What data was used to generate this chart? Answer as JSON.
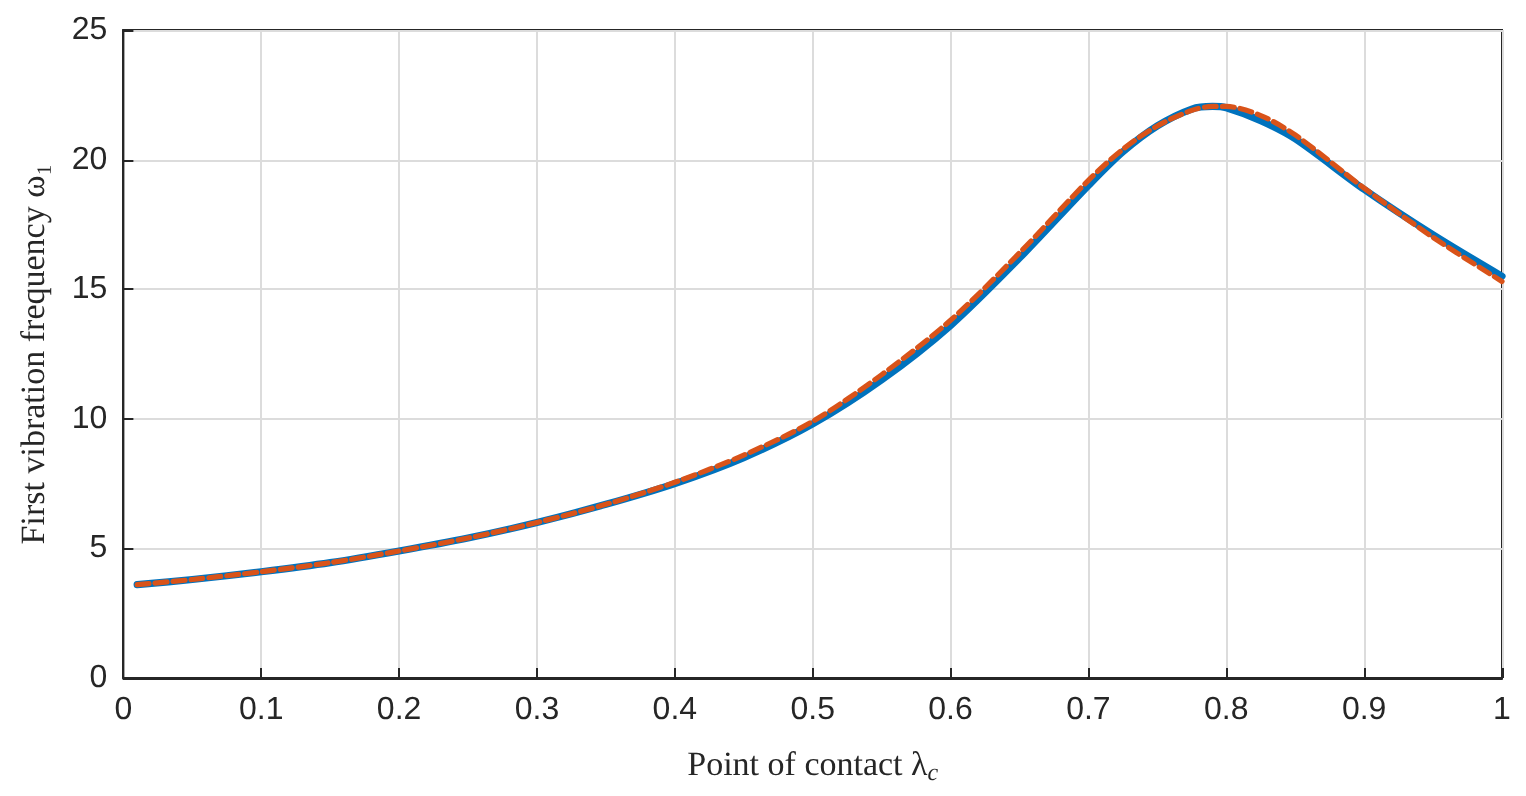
{
  "chart_data": {
    "type": "line",
    "xlabel": "Point of contact λ$_{c}$",
    "ylabel": "First vibration frequency ω₁",
    "xlim": [
      0,
      1
    ],
    "ylim": [
      0,
      25
    ],
    "xticks": [
      0,
      0.1,
      0.2,
      0.3,
      0.4,
      0.5,
      0.6,
      0.7,
      0.8,
      0.9,
      1
    ],
    "yticks": [
      0,
      5,
      10,
      15,
      20,
      25
    ],
    "grid": true,
    "marker": "none",
    "series": [
      {
        "color": "#0072bd",
        "line_style": "solid",
        "x": [
          0.01,
          0.05,
          0.1,
          0.15,
          0.2,
          0.25,
          0.3,
          0.35,
          0.4,
          0.45,
          0.5,
          0.55,
          0.6,
          0.65,
          0.7,
          0.725,
          0.75,
          0.775,
          0.79,
          0.8,
          0.825,
          0.85,
          0.9,
          0.95,
          1.0
        ],
        "values": [
          3.6,
          3.8,
          4.1,
          4.45,
          4.9,
          5.4,
          6.0,
          6.7,
          7.5,
          8.5,
          9.8,
          11.5,
          13.6,
          16.2,
          19.0,
          20.3,
          21.3,
          21.95,
          22.05,
          22.0,
          21.5,
          20.8,
          18.85,
          17.1,
          15.5
        ]
      },
      {
        "color": "#d95319",
        "line_style": "dashed",
        "x": [
          0.01,
          0.05,
          0.1,
          0.15,
          0.2,
          0.25,
          0.3,
          0.35,
          0.4,
          0.45,
          0.5,
          0.55,
          0.6,
          0.65,
          0.7,
          0.725,
          0.75,
          0.775,
          0.79,
          0.8,
          0.825,
          0.85,
          0.9,
          0.95,
          1.0
        ],
        "values": [
          3.6,
          3.8,
          4.1,
          4.45,
          4.9,
          5.4,
          6.0,
          6.7,
          7.55,
          8.6,
          9.9,
          11.7,
          13.8,
          16.4,
          19.2,
          20.4,
          21.3,
          21.9,
          22.05,
          22.05,
          21.7,
          20.95,
          18.9,
          17.0,
          15.3
        ]
      }
    ]
  }
}
